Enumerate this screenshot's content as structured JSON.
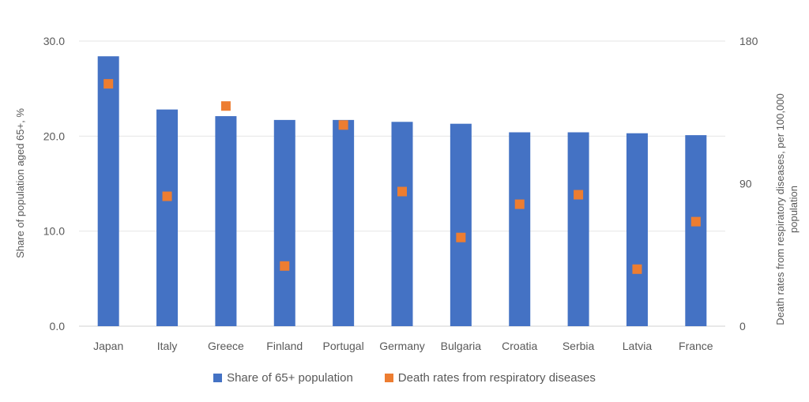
{
  "chart_data": {
    "type": "bar",
    "categories": [
      "Japan",
      "Italy",
      "Greece",
      "Finland",
      "Portugal",
      "Germany",
      "Bulgaria",
      "Croatia",
      "Serbia",
      "Latvia",
      "France"
    ],
    "series": [
      {
        "name": "Share of 65+ population",
        "kind": "bar",
        "axis": "left",
        "color": "#4472C4",
        "values": [
          28.4,
          22.8,
          22.1,
          21.7,
          21.7,
          21.5,
          21.3,
          20.4,
          20.4,
          20.3,
          20.1
        ]
      },
      {
        "name": "Death rates from respiratory diseases",
        "kind": "marker",
        "axis": "right",
        "color": "#ED7D31",
        "values": [
          153,
          82,
          139,
          38,
          127,
          85,
          56,
          77,
          83,
          36,
          66
        ]
      }
    ],
    "ylabel_left": "Share of population aged 65+, %",
    "ylabel_right": "Death rates from respiratory diseases, per 100,000 population",
    "ylim_left": [
      0,
      30
    ],
    "ylim_right": [
      0,
      180
    ],
    "yticks_left": [
      "0.0",
      "10.0",
      "20.0",
      "30.0"
    ],
    "yticks_right": [
      "0",
      "90",
      "180"
    ],
    "grid": true,
    "legend_position": "bottom"
  }
}
